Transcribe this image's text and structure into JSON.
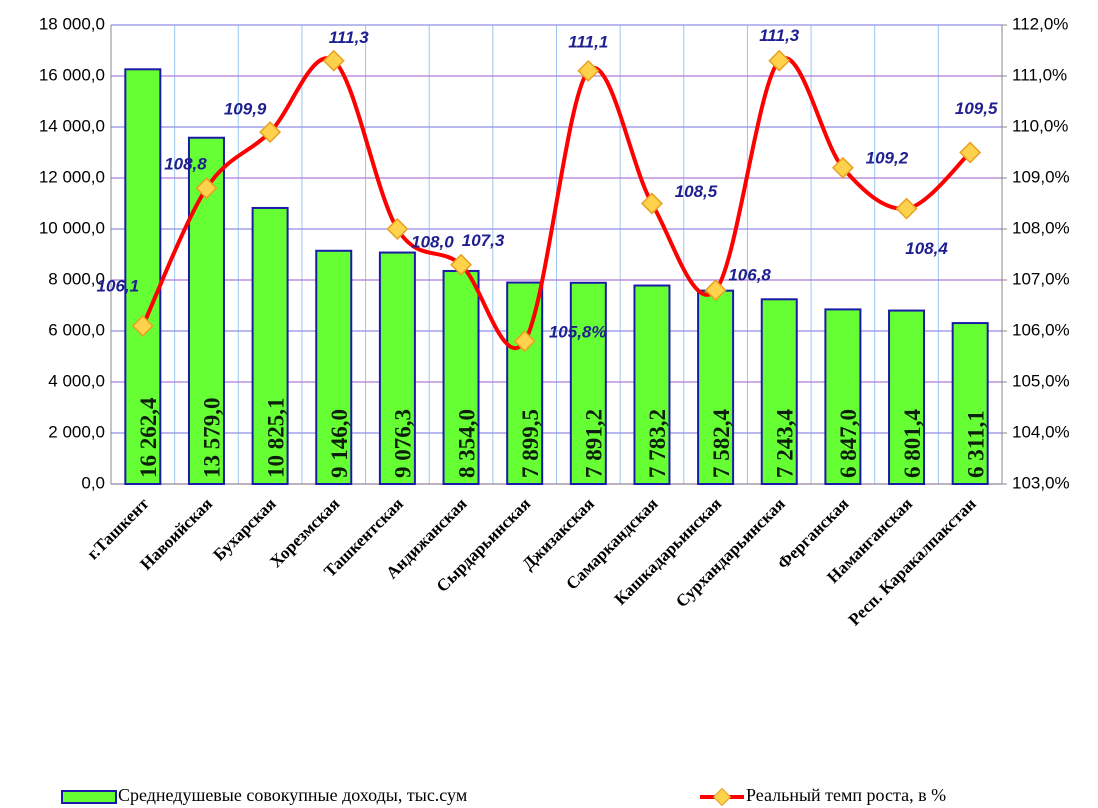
{
  "chart_data": {
    "type": "combo",
    "categories": [
      "г.Ташкент",
      "Навоийская",
      "Бухарская",
      "Хорезмская",
      "Ташкентская",
      "Андижанская",
      "Сырдарьинская",
      "Джизакская",
      "Самаркандская",
      "Кашкадарьинская",
      "Сурхандарьинская",
      "Ферганская",
      "Наманганская",
      "Респ. Каракалпакстан"
    ],
    "series": [
      {
        "name": "Среднедушевые совокупные доходы, тыс.сум",
        "type": "bar",
        "color": "#66ff33",
        "values": [
          16262.4,
          13579.0,
          10825.1,
          9146.0,
          9076.3,
          8354.0,
          7899.5,
          7891.2,
          7783.2,
          7582.4,
          7243.4,
          6847.0,
          6801.4,
          6311.1
        ],
        "value_labels": [
          "16 262,4",
          "13 579,0",
          "10 825,1",
          "9 146,0",
          "9 076,3",
          "8 354,0",
          "7 899,5",
          "7 891,2",
          "7 783,2",
          "7 582,4",
          "7 243,4",
          "6 847,0",
          "6 801,4",
          "6 311,1"
        ]
      },
      {
        "name": "Реальный темп роста, в %",
        "type": "line",
        "axis": "y2",
        "color": "#ff0000",
        "values": [
          106.1,
          108.8,
          109.9,
          111.3,
          108.0,
          107.3,
          105.8,
          111.1,
          108.5,
          106.8,
          111.3,
          109.2,
          108.4,
          109.5
        ],
        "value_labels": [
          "106,1",
          "108,8",
          "109,9",
          "111,3",
          "108,0",
          "107,3",
          "105,8%",
          "111,1",
          "108,5",
          "106,8",
          "111,3",
          "109,2",
          "108,4",
          "109,5"
        ]
      }
    ],
    "ylim": [
      0,
      18000
    ],
    "yticks": [
      {
        "value": 0,
        "label": "0,0"
      },
      {
        "value": 2000,
        "label": "2 000,0"
      },
      {
        "value": 4000,
        "label": "4 000,0"
      },
      {
        "value": 6000,
        "label": "6 000,0"
      },
      {
        "value": 8000,
        "label": "8 000,0"
      },
      {
        "value": 10000,
        "label": "10 000,0"
      },
      {
        "value": 12000,
        "label": "12 000,0"
      },
      {
        "value": 14000,
        "label": "14 000,0"
      },
      {
        "value": 16000,
        "label": "16 000,0"
      },
      {
        "value": 18000,
        "label": "18 000,0"
      }
    ],
    "y2lim": [
      103,
      112
    ],
    "y2ticks": [
      {
        "value": 103,
        "label": "103,0%"
      },
      {
        "value": 104,
        "label": "104,0%"
      },
      {
        "value": 105,
        "label": "105,0%"
      },
      {
        "value": 106,
        "label": "106,0%"
      },
      {
        "value": 107,
        "label": "107,0%"
      },
      {
        "value": 108,
        "label": "108,0%"
      },
      {
        "value": 109,
        "label": "109,0%"
      },
      {
        "value": 110,
        "label": "110,0%"
      },
      {
        "value": 111,
        "label": "111,0%"
      },
      {
        "value": 112,
        "label": "112,0%"
      }
    ],
    "grid": true,
    "legend": "bottom"
  }
}
